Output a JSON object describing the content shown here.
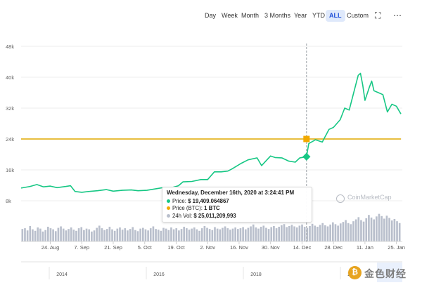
{
  "toolbar": {
    "ranges": [
      "Day",
      "Week",
      "Month",
      "3 Months",
      "Year",
      "YTD",
      "ALL",
      "Custom"
    ],
    "active_range": "ALL",
    "fullscreen_icon": "fullscreen-icon",
    "menu_icon": "more-horizontal-icon"
  },
  "tooltip": {
    "title": "Wednesday, December 16th, 2020 at 3:24:41 PM",
    "price_label": "Price:",
    "price_value": "$ 19,409.064867",
    "price_btc_label": "Price (BTC):",
    "price_btc_value": "1 BTC",
    "vol_label": "24h Vol:",
    "vol_value": "$ 25,011,209,993"
  },
  "watermark": "CoinMarketCap",
  "corner_logo": {
    "text": "金色财经",
    "icon": "coin-icon"
  },
  "navigator": {
    "year_labels": [
      "2014",
      "2016",
      "2018",
      "2020"
    ]
  },
  "colors": {
    "price": "#16c784",
    "btc": "#f2a900",
    "volume": "#b9bfcc",
    "active_range": "#1d4ed8"
  },
  "chart_data": {
    "type": "line",
    "title": "",
    "xlabel": "",
    "ylabel": "",
    "y_ticks": [
      "8k",
      "16k",
      "24k",
      "32k",
      "40k",
      "48k"
    ],
    "ylim": [
      0,
      48000
    ],
    "x_ticks": [
      "24. Aug",
      "7. Sep",
      "21. Sep",
      "5. Oct",
      "19. Oct",
      "2. Nov",
      "16. Nov",
      "30. Nov",
      "14. Dec",
      "28. Dec",
      "11. Jan",
      "25. Jan"
    ],
    "grid": true,
    "horizontal_line": {
      "y": 24000,
      "label": ""
    },
    "crosshair": "2020-12-16",
    "series": [
      {
        "name": "Price",
        "points": [
          [
            "2020-08-11",
            11300
          ],
          [
            "2020-08-15",
            11700
          ],
          [
            "2020-08-18",
            12200
          ],
          [
            "2020-08-21",
            11600
          ],
          [
            "2020-08-24",
            11800
          ],
          [
            "2020-08-27",
            11400
          ],
          [
            "2020-08-31",
            11700
          ],
          [
            "2020-09-02",
            11900
          ],
          [
            "2020-09-04",
            10400
          ],
          [
            "2020-09-07",
            10200
          ],
          [
            "2020-09-10",
            10400
          ],
          [
            "2020-09-14",
            10600
          ],
          [
            "2020-09-18",
            10900
          ],
          [
            "2020-09-21",
            10500
          ],
          [
            "2020-09-25",
            10700
          ],
          [
            "2020-09-29",
            10800
          ],
          [
            "2020-10-02",
            10600
          ],
          [
            "2020-10-06",
            10700
          ],
          [
            "2020-10-10",
            11100
          ],
          [
            "2020-10-13",
            11400
          ],
          [
            "2020-10-17",
            11400
          ],
          [
            "2020-10-20",
            11900
          ],
          [
            "2020-10-22",
            12900
          ],
          [
            "2020-10-26",
            13000
          ],
          [
            "2020-10-30",
            13500
          ],
          [
            "2020-11-02",
            13500
          ],
          [
            "2020-11-05",
            15500
          ],
          [
            "2020-11-08",
            15500
          ],
          [
            "2020-11-11",
            15700
          ],
          [
            "2020-11-13",
            16300
          ],
          [
            "2020-11-17",
            17700
          ],
          [
            "2020-11-20",
            18600
          ],
          [
            "2020-11-24",
            19100
          ],
          [
            "2020-11-26",
            17100
          ],
          [
            "2020-11-30",
            19600
          ],
          [
            "2020-12-02",
            19200
          ],
          [
            "2020-12-05",
            19100
          ],
          [
            "2020-12-08",
            18300
          ],
          [
            "2020-12-11",
            18000
          ],
          [
            "2020-12-13",
            19100
          ],
          [
            "2020-12-16",
            19409
          ],
          [
            "2020-12-17",
            22800
          ],
          [
            "2020-12-20",
            23800
          ],
          [
            "2020-12-23",
            23200
          ],
          [
            "2020-12-26",
            26500
          ],
          [
            "2020-12-28",
            27000
          ],
          [
            "2020-12-31",
            29000
          ],
          [
            "2021-01-02",
            32000
          ],
          [
            "2021-01-04",
            31500
          ],
          [
            "2021-01-06",
            36000
          ],
          [
            "2021-01-08",
            40500
          ],
          [
            "2021-01-09",
            41000
          ],
          [
            "2021-01-10",
            38000
          ],
          [
            "2021-01-11",
            34000
          ],
          [
            "2021-01-13",
            37500
          ],
          [
            "2021-01-14",
            39000
          ],
          [
            "2021-01-15",
            36500
          ],
          [
            "2021-01-17",
            36000
          ],
          [
            "2021-01-19",
            35500
          ],
          [
            "2021-01-21",
            31000
          ],
          [
            "2021-01-23",
            33000
          ],
          [
            "2021-01-25",
            32500
          ],
          [
            "2021-01-27",
            30500
          ]
        ]
      },
      {
        "name": "Price (BTC)",
        "points": [
          [
            "2020-12-16",
            24000
          ]
        ]
      },
      {
        "name": "24h Vol",
        "relative_volumes": [
          0.34,
          0.36,
          0.3,
          0.42,
          0.33,
          0.29,
          0.38,
          0.35,
          0.27,
          0.31,
          0.4,
          0.36,
          0.33,
          0.28,
          0.37,
          0.41,
          0.35,
          0.3,
          0.34,
          0.38,
          0.32,
          0.29,
          0.36,
          0.39,
          0.31,
          0.35,
          0.33,
          0.27,
          0.3,
          0.37,
          0.43,
          0.36,
          0.31,
          0.34,
          0.4,
          0.33,
          0.29,
          0.35,
          0.38,
          0.32,
          0.36,
          0.3,
          0.34,
          0.39,
          0.31,
          0.28,
          0.35,
          0.37,
          0.33,
          0.3,
          0.36,
          0.41,
          0.34,
          0.32,
          0.29,
          0.37,
          0.35,
          0.31,
          0.38,
          0.33,
          0.36,
          0.3,
          0.34,
          0.4,
          0.36,
          0.32,
          0.35,
          0.38,
          0.33,
          0.29,
          0.36,
          0.42,
          0.37,
          0.34,
          0.31,
          0.39,
          0.35,
          0.33,
          0.37,
          0.41,
          0.36,
          0.32,
          0.35,
          0.38,
          0.34,
          0.36,
          0.39,
          0.33,
          0.37,
          0.41,
          0.46,
          0.38,
          0.35,
          0.4,
          0.43,
          0.37,
          0.34,
          0.39,
          0.42,
          0.36,
          0.4,
          0.44,
          0.47,
          0.39,
          0.42,
          0.45,
          0.41,
          0.38,
          0.43,
          0.46,
          0.4,
          0.37,
          0.42,
          0.48,
          0.43,
          0.4,
          0.45,
          0.5,
          0.44,
          0.41,
          0.46,
          0.52,
          0.47,
          0.43,
          0.49,
          0.53,
          0.58,
          0.5,
          0.47,
          0.55,
          0.6,
          0.66,
          0.58,
          0.54,
          0.63,
          0.72,
          0.65,
          0.6,
          0.68,
          0.75,
          0.69,
          0.62,
          0.7,
          0.64,
          0.57,
          0.61,
          0.55,
          0.5
        ]
      }
    ]
  }
}
